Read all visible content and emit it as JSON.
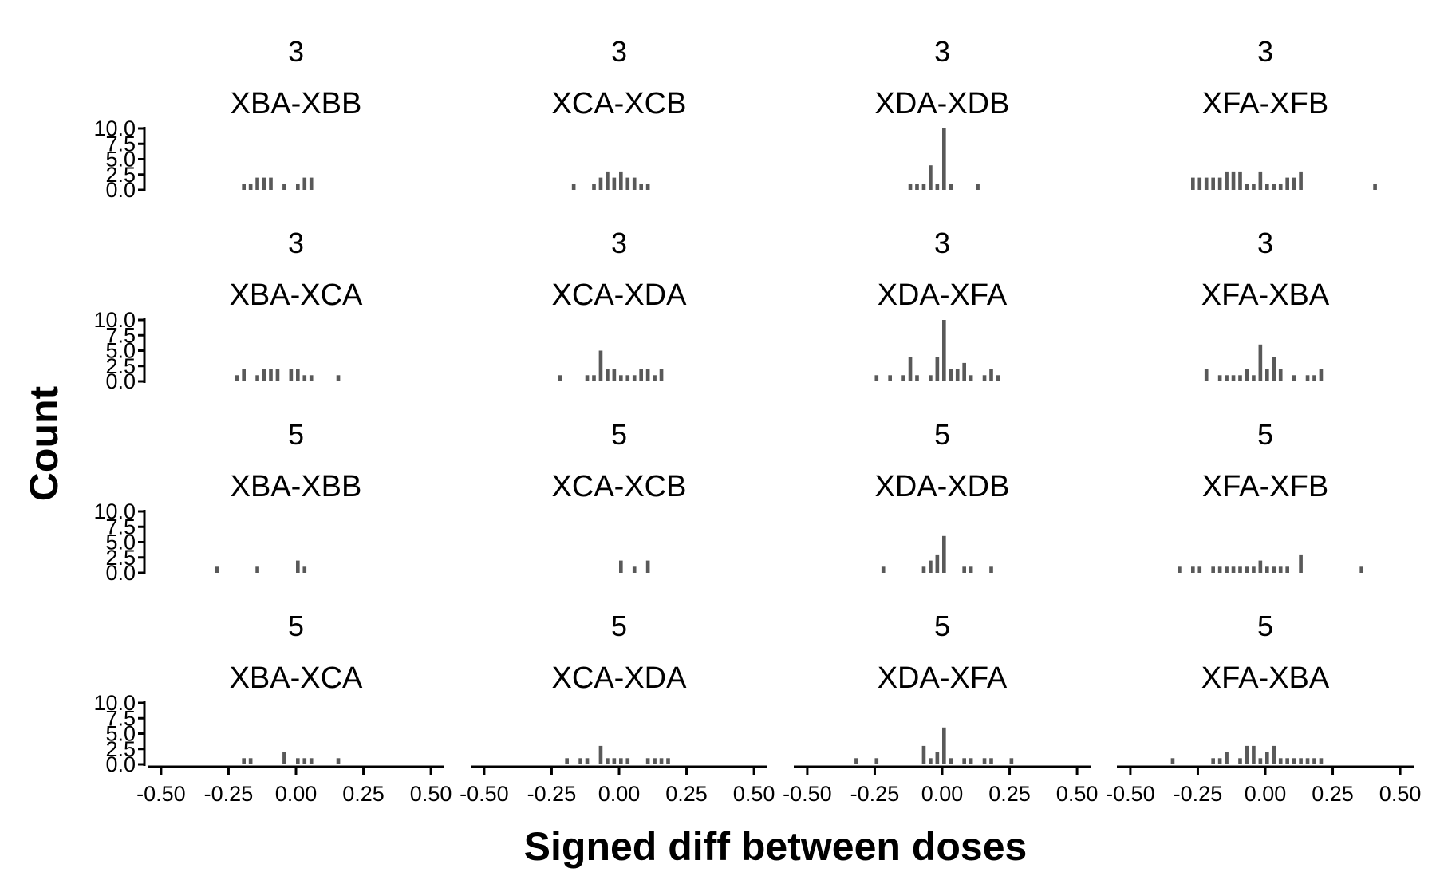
{
  "chart_data": {
    "type": "bar",
    "subtype": "faceted histogram",
    "xlabel": "Signed diff between doses",
    "ylabel": "Count",
    "xlim": [
      -0.55,
      0.55
    ],
    "ylim": [
      0,
      10
    ],
    "bar_color": "#595959",
    "x_ticks": [
      "-0.50",
      "-0.25",
      "0.00",
      "0.25",
      "0.50"
    ],
    "x_tick_values": [
      -0.5,
      -0.25,
      0,
      0.25,
      0.5
    ],
    "y_ticks": [
      "0.0",
      "2.5",
      "5.0",
      "7.5",
      "10.0"
    ],
    "y_tick_values": [
      0,
      2.5,
      5,
      7.5,
      10
    ],
    "bin_width": 0.0125,
    "facets": [
      {
        "dose": "3",
        "comparison": "XBA-XBB",
        "bins": [
          [
            -0.2,
            1
          ],
          [
            -0.175,
            1
          ],
          [
            -0.15,
            2
          ],
          [
            -0.125,
            2
          ],
          [
            -0.1,
            2
          ],
          [
            -0.05,
            1
          ],
          [
            0.0,
            1
          ],
          [
            0.025,
            2
          ],
          [
            0.05,
            2
          ]
        ]
      },
      {
        "dose": "3",
        "comparison": "XCA-XCB",
        "bins": [
          [
            -0.175,
            1
          ],
          [
            -0.1,
            1
          ],
          [
            -0.075,
            2
          ],
          [
            -0.05,
            3
          ],
          [
            -0.025,
            2
          ],
          [
            0.0,
            3
          ],
          [
            0.025,
            2
          ],
          [
            0.05,
            2
          ],
          [
            0.075,
            1
          ],
          [
            0.1,
            1
          ]
        ]
      },
      {
        "dose": "3",
        "comparison": "XDA-XDB",
        "bins": [
          [
            -0.125,
            1
          ],
          [
            -0.1,
            1
          ],
          [
            -0.075,
            1
          ],
          [
            -0.05,
            4
          ],
          [
            -0.025,
            1
          ],
          [
            0.0,
            10
          ],
          [
            0.025,
            1
          ],
          [
            0.125,
            1
          ]
        ]
      },
      {
        "dose": "3",
        "comparison": "XFA-XFB",
        "bins": [
          [
            -0.275,
            2
          ],
          [
            -0.25,
            2
          ],
          [
            -0.225,
            2
          ],
          [
            -0.2,
            2
          ],
          [
            -0.175,
            2
          ],
          [
            -0.15,
            3
          ],
          [
            -0.125,
            3
          ],
          [
            -0.1,
            3
          ],
          [
            -0.075,
            1
          ],
          [
            -0.05,
            1
          ],
          [
            -0.025,
            3
          ],
          [
            0.0,
            1
          ],
          [
            0.025,
            1
          ],
          [
            0.05,
            1
          ],
          [
            0.075,
            2
          ],
          [
            0.1,
            2
          ],
          [
            0.125,
            3
          ],
          [
            0.4,
            1
          ]
        ]
      },
      {
        "dose": "3",
        "comparison": "XBA-XCA",
        "bins": [
          [
            -0.225,
            1
          ],
          [
            -0.2,
            2
          ],
          [
            -0.15,
            1
          ],
          [
            -0.125,
            2
          ],
          [
            -0.1,
            2
          ],
          [
            -0.075,
            2
          ],
          [
            -0.025,
            2
          ],
          [
            0.0,
            2
          ],
          [
            0.025,
            1
          ],
          [
            0.05,
            1
          ],
          [
            0.15,
            1
          ]
        ]
      },
      {
        "dose": "3",
        "comparison": "XCA-XDA",
        "bins": [
          [
            -0.225,
            1
          ],
          [
            -0.125,
            1
          ],
          [
            -0.1,
            1
          ],
          [
            -0.075,
            5
          ],
          [
            -0.05,
            2
          ],
          [
            -0.025,
            2
          ],
          [
            0.0,
            1
          ],
          [
            0.025,
            1
          ],
          [
            0.05,
            1
          ],
          [
            0.075,
            2
          ],
          [
            0.1,
            2
          ],
          [
            0.125,
            1
          ],
          [
            0.15,
            2
          ]
        ]
      },
      {
        "dose": "3",
        "comparison": "XDA-XFA",
        "bins": [
          [
            -0.25,
            1
          ],
          [
            -0.2,
            1
          ],
          [
            -0.15,
            1
          ],
          [
            -0.125,
            4
          ],
          [
            -0.1,
            1
          ],
          [
            -0.05,
            1
          ],
          [
            -0.025,
            4
          ],
          [
            0.0,
            10
          ],
          [
            0.025,
            2
          ],
          [
            0.05,
            2
          ],
          [
            0.075,
            3
          ],
          [
            0.1,
            1
          ],
          [
            0.15,
            1
          ],
          [
            0.175,
            2
          ],
          [
            0.2,
            1
          ]
        ]
      },
      {
        "dose": "3",
        "comparison": "XFA-XBA",
        "bins": [
          [
            -0.225,
            2
          ],
          [
            -0.175,
            1
          ],
          [
            -0.15,
            1
          ],
          [
            -0.125,
            1
          ],
          [
            -0.1,
            1
          ],
          [
            -0.075,
            2
          ],
          [
            -0.05,
            1
          ],
          [
            -0.025,
            6
          ],
          [
            0.0,
            2
          ],
          [
            0.025,
            4
          ],
          [
            0.05,
            2
          ],
          [
            0.1,
            1
          ],
          [
            0.15,
            1
          ],
          [
            0.175,
            1
          ],
          [
            0.2,
            2
          ]
        ]
      },
      {
        "dose": "5",
        "comparison": "XBA-XBB",
        "bins": [
          [
            -0.3,
            1
          ],
          [
            -0.15,
            1
          ],
          [
            0.0,
            2
          ],
          [
            0.025,
            1
          ]
        ]
      },
      {
        "dose": "5",
        "comparison": "XCA-XCB",
        "bins": [
          [
            0.0,
            2
          ],
          [
            0.05,
            1
          ],
          [
            0.1,
            2
          ]
        ]
      },
      {
        "dose": "5",
        "comparison": "XDA-XDB",
        "bins": [
          [
            -0.225,
            1
          ],
          [
            -0.075,
            1
          ],
          [
            -0.05,
            2
          ],
          [
            -0.025,
            3
          ],
          [
            0.0,
            6
          ],
          [
            0.075,
            1
          ],
          [
            0.1,
            1
          ],
          [
            0.175,
            1
          ]
        ]
      },
      {
        "dose": "5",
        "comparison": "XFA-XFB",
        "bins": [
          [
            -0.325,
            1
          ],
          [
            -0.275,
            1
          ],
          [
            -0.25,
            1
          ],
          [
            -0.2,
            1
          ],
          [
            -0.175,
            1
          ],
          [
            -0.15,
            1
          ],
          [
            -0.125,
            1
          ],
          [
            -0.1,
            1
          ],
          [
            -0.075,
            1
          ],
          [
            -0.05,
            1
          ],
          [
            -0.025,
            2
          ],
          [
            0.0,
            1
          ],
          [
            0.025,
            1
          ],
          [
            0.05,
            1
          ],
          [
            0.075,
            1
          ],
          [
            0.125,
            3
          ],
          [
            0.35,
            1
          ]
        ]
      },
      {
        "dose": "5",
        "comparison": "XBA-XCA",
        "bins": [
          [
            -0.2,
            1
          ],
          [
            -0.175,
            1
          ],
          [
            -0.05,
            2
          ],
          [
            0.0,
            1
          ],
          [
            0.025,
            1
          ],
          [
            0.05,
            1
          ],
          [
            0.15,
            1
          ]
        ]
      },
      {
        "dose": "5",
        "comparison": "XCA-XDA",
        "bins": [
          [
            -0.2,
            1
          ],
          [
            -0.15,
            1
          ],
          [
            -0.125,
            1
          ],
          [
            -0.075,
            3
          ],
          [
            -0.05,
            1
          ],
          [
            -0.025,
            1
          ],
          [
            0.0,
            1
          ],
          [
            0.025,
            1
          ],
          [
            0.1,
            1
          ],
          [
            0.125,
            1
          ],
          [
            0.15,
            1
          ],
          [
            0.175,
            1
          ]
        ]
      },
      {
        "dose": "5",
        "comparison": "XDA-XFA",
        "bins": [
          [
            -0.325,
            1
          ],
          [
            -0.25,
            1
          ],
          [
            -0.075,
            3
          ],
          [
            -0.05,
            1
          ],
          [
            -0.025,
            2
          ],
          [
            0.0,
            6
          ],
          [
            0.025,
            1
          ],
          [
            0.075,
            1
          ],
          [
            0.1,
            1
          ],
          [
            0.15,
            1
          ],
          [
            0.175,
            1
          ],
          [
            0.25,
            1
          ]
        ]
      },
      {
        "dose": "5",
        "comparison": "XFA-XBA",
        "bins": [
          [
            -0.35,
            1
          ],
          [
            -0.2,
            1
          ],
          [
            -0.175,
            1
          ],
          [
            -0.15,
            2
          ],
          [
            -0.1,
            1
          ],
          [
            -0.075,
            3
          ],
          [
            -0.05,
            3
          ],
          [
            -0.025,
            1
          ],
          [
            0.0,
            2
          ],
          [
            0.025,
            3
          ],
          [
            0.05,
            1
          ],
          [
            0.075,
            1
          ],
          [
            0.1,
            1
          ],
          [
            0.125,
            1
          ],
          [
            0.15,
            1
          ],
          [
            0.175,
            1
          ],
          [
            0.2,
            1
          ]
        ]
      }
    ]
  }
}
